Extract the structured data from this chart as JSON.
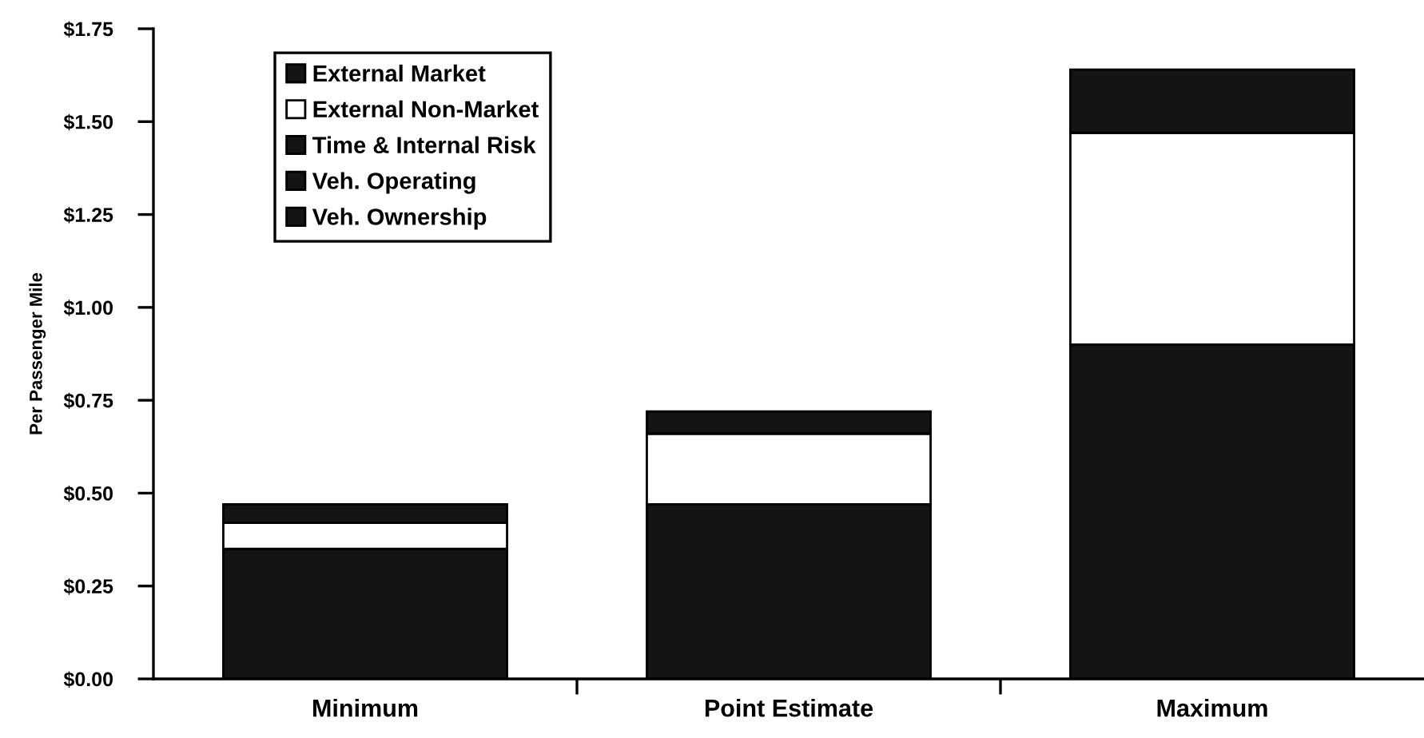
{
  "chart_data": {
    "type": "bar",
    "stacked": true,
    "ylabel": "Per Passenger Mile",
    "categories": [
      "Minimum",
      "Point Estimate",
      "Maximum"
    ],
    "series": [
      {
        "color": "#141414",
        "values": [
          0.35,
          0.47,
          0.9
        ]
      },
      {
        "name": "Veh. Ownership",
        "color": "#141414",
        "values": [
          null,
          null,
          null
        ]
      },
      {
        "name": "Veh. Operating",
        "color": "#141414",
        "values": [
          null,
          null,
          null
        ]
      },
      {
        "name": "Time & Internal Risk",
        "color": "#141414",
        "values": [
          null,
          null,
          null
        ]
      },
      {
        "name": "External Non-Market",
        "color": "#ffffff",
        "values": [
          0.07,
          0.19,
          0.57
        ]
      },
      {
        "name": "External Market",
        "color": "#141414",
        "values": [
          0.05,
          0.06,
          0.17
        ]
      }
    ],
    "ylim": [
      0,
      1.75
    ],
    "yticks": [
      {
        "value": 0,
        "label": "$0.00"
      },
      {
        "value": 0.25,
        "label": "$0.25"
      },
      {
        "value": 0.5,
        "label": "$0.50"
      },
      {
        "value": 0.75,
        "label": "$0.75"
      },
      {
        "value": 1.0,
        "label": "$1.00"
      },
      {
        "value": 1.25,
        "label": "$1.25"
      },
      {
        "value": 1.5,
        "label": "$1.50"
      },
      {
        "value": 1.75,
        "label": "$1.75"
      }
    ],
    "legend": "top left"
  }
}
